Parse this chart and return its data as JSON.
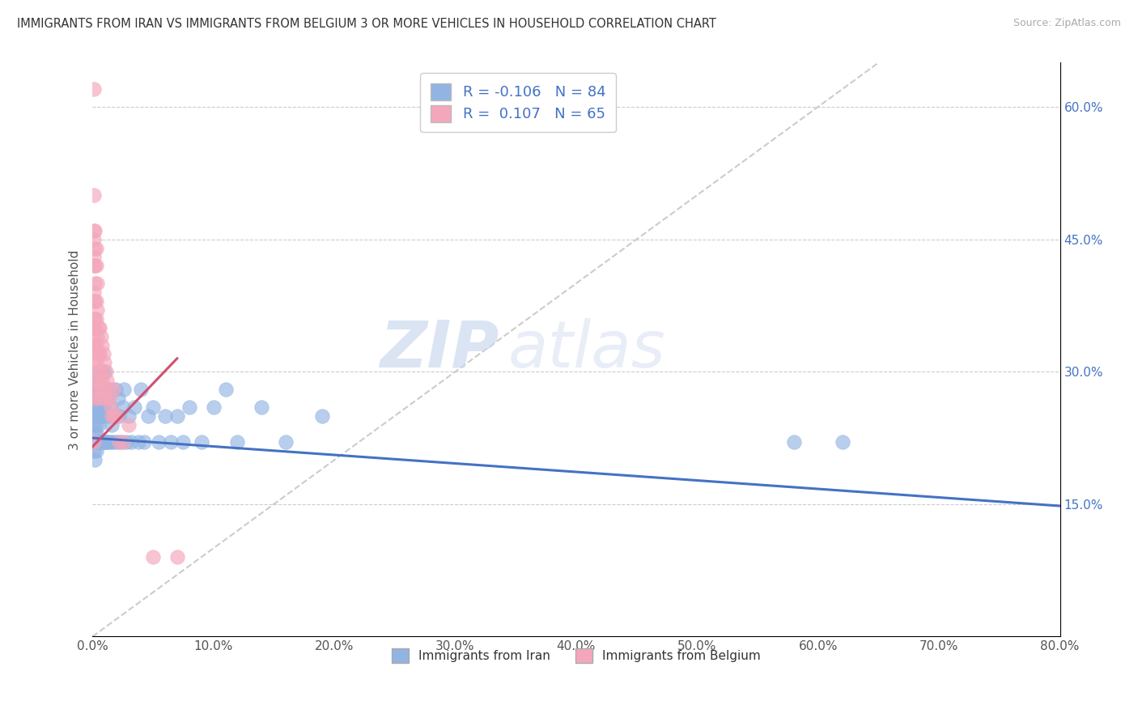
{
  "title": "IMMIGRANTS FROM IRAN VS IMMIGRANTS FROM BELGIUM 3 OR MORE VEHICLES IN HOUSEHOLD CORRELATION CHART",
  "source": "Source: ZipAtlas.com",
  "ylabel": "3 or more Vehicles in Household",
  "x_tick_labels": [
    "0.0%",
    "10.0%",
    "20.0%",
    "30.0%",
    "40.0%",
    "50.0%",
    "60.0%",
    "70.0%",
    "80.0%"
  ],
  "x_tick_vals": [
    0.0,
    0.1,
    0.2,
    0.3,
    0.4,
    0.5,
    0.6,
    0.7,
    0.8
  ],
  "y_tick_labels_right": [
    "15.0%",
    "30.0%",
    "45.0%",
    "60.0%"
  ],
  "y_tick_vals": [
    0.15,
    0.3,
    0.45,
    0.6
  ],
  "xlim": [
    0.0,
    0.8
  ],
  "ylim": [
    0.0,
    0.65
  ],
  "legend_r_iran": "-0.106",
  "legend_n_iran": "84",
  "legend_r_belgium": "0.107",
  "legend_n_belgium": "65",
  "iran_color": "#92b4e3",
  "belgium_color": "#f4a7bb",
  "iran_line_color": "#4472c4",
  "belgium_line_color": "#d05070",
  "diagonal_color": "#cccccc",
  "watermark_zip": "ZIP",
  "watermark_atlas": "atlas",
  "iran_x": [
    0.001,
    0.001,
    0.001,
    0.001,
    0.001,
    0.002,
    0.002,
    0.002,
    0.002,
    0.002,
    0.002,
    0.003,
    0.003,
    0.003,
    0.003,
    0.003,
    0.003,
    0.004,
    0.004,
    0.004,
    0.004,
    0.005,
    0.005,
    0.005,
    0.005,
    0.005,
    0.006,
    0.006,
    0.006,
    0.007,
    0.007,
    0.007,
    0.008,
    0.008,
    0.008,
    0.009,
    0.009,
    0.009,
    0.01,
    0.01,
    0.01,
    0.011,
    0.011,
    0.012,
    0.012,
    0.013,
    0.013,
    0.014,
    0.015,
    0.015,
    0.016,
    0.017,
    0.018,
    0.019,
    0.02,
    0.021,
    0.022,
    0.023,
    0.025,
    0.026,
    0.028,
    0.03,
    0.032,
    0.035,
    0.038,
    0.04,
    0.043,
    0.046,
    0.05,
    0.055,
    0.06,
    0.065,
    0.07,
    0.075,
    0.08,
    0.09,
    0.1,
    0.11,
    0.12,
    0.14,
    0.16,
    0.19,
    0.58,
    0.62
  ],
  "iran_y": [
    0.22,
    0.24,
    0.26,
    0.21,
    0.28,
    0.22,
    0.25,
    0.2,
    0.27,
    0.23,
    0.29,
    0.22,
    0.26,
    0.24,
    0.21,
    0.28,
    0.23,
    0.25,
    0.22,
    0.27,
    0.3,
    0.22,
    0.25,
    0.28,
    0.22,
    0.24,
    0.22,
    0.26,
    0.29,
    0.22,
    0.25,
    0.28,
    0.22,
    0.26,
    0.3,
    0.22,
    0.25,
    0.28,
    0.22,
    0.26,
    0.3,
    0.22,
    0.28,
    0.22,
    0.27,
    0.25,
    0.22,
    0.28,
    0.22,
    0.26,
    0.24,
    0.22,
    0.25,
    0.28,
    0.22,
    0.27,
    0.25,
    0.22,
    0.26,
    0.28,
    0.22,
    0.25,
    0.22,
    0.26,
    0.22,
    0.28,
    0.22,
    0.25,
    0.26,
    0.22,
    0.25,
    0.22,
    0.25,
    0.22,
    0.26,
    0.22,
    0.26,
    0.28,
    0.22,
    0.26,
    0.22,
    0.25,
    0.22,
    0.22
  ],
  "belgium_x": [
    0.001,
    0.001,
    0.001,
    0.001,
    0.001,
    0.001,
    0.001,
    0.001,
    0.001,
    0.001,
    0.001,
    0.001,
    0.001,
    0.002,
    0.002,
    0.002,
    0.002,
    0.002,
    0.002,
    0.002,
    0.002,
    0.002,
    0.002,
    0.002,
    0.003,
    0.003,
    0.003,
    0.003,
    0.003,
    0.003,
    0.003,
    0.004,
    0.004,
    0.004,
    0.004,
    0.004,
    0.005,
    0.005,
    0.005,
    0.005,
    0.006,
    0.006,
    0.006,
    0.007,
    0.007,
    0.008,
    0.008,
    0.009,
    0.009,
    0.01,
    0.01,
    0.011,
    0.012,
    0.013,
    0.014,
    0.015,
    0.016,
    0.017,
    0.018,
    0.02,
    0.022,
    0.025,
    0.03,
    0.05,
    0.07
  ],
  "belgium_y": [
    0.62,
    0.5,
    0.46,
    0.45,
    0.43,
    0.42,
    0.39,
    0.38,
    0.36,
    0.35,
    0.34,
    0.33,
    0.22,
    0.46,
    0.44,
    0.42,
    0.4,
    0.38,
    0.36,
    0.35,
    0.33,
    0.31,
    0.29,
    0.27,
    0.44,
    0.42,
    0.38,
    0.36,
    0.33,
    0.31,
    0.28,
    0.4,
    0.37,
    0.34,
    0.32,
    0.29,
    0.35,
    0.32,
    0.3,
    0.27,
    0.35,
    0.32,
    0.28,
    0.34,
    0.3,
    0.33,
    0.29,
    0.32,
    0.28,
    0.31,
    0.27,
    0.3,
    0.29,
    0.28,
    0.27,
    0.26,
    0.25,
    0.28,
    0.25,
    0.25,
    0.22,
    0.22,
    0.24,
    0.09,
    0.09
  ]
}
